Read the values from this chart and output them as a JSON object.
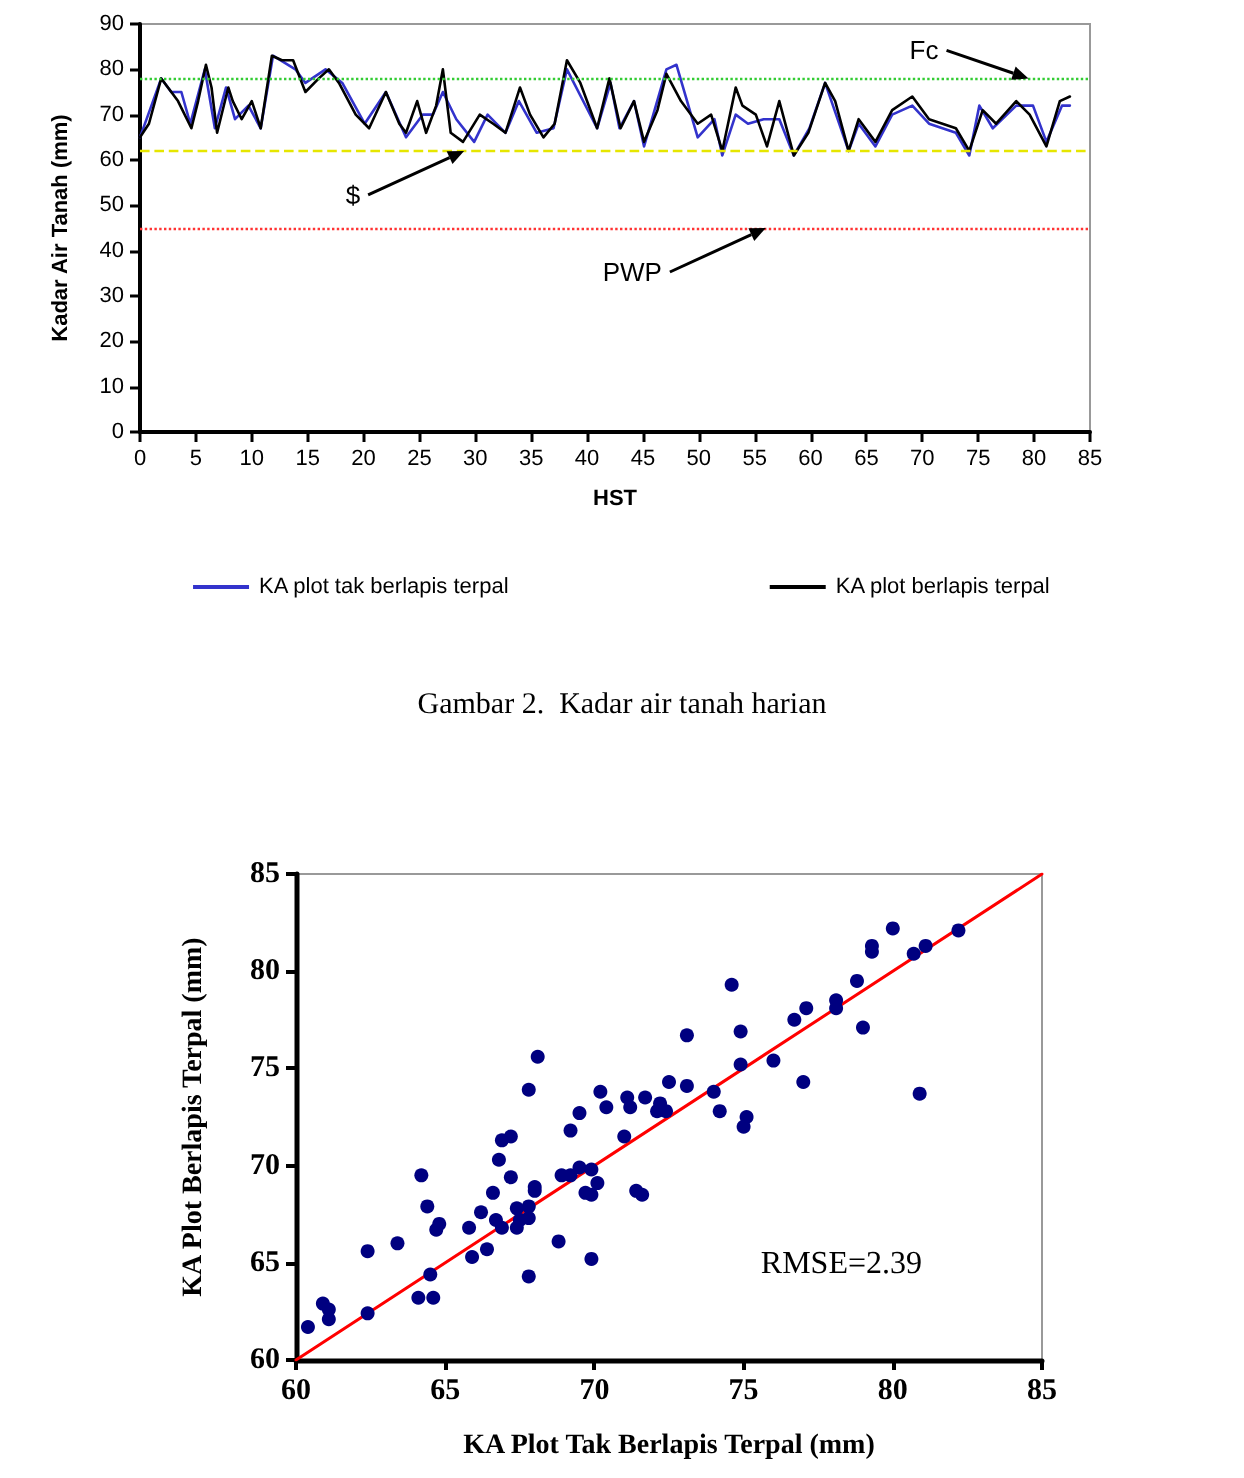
{
  "chart_data": [
    {
      "type": "line",
      "xlabel": "HST",
      "ylabel": "Kadar Air Tanah (mm)",
      "xlim": [
        0,
        85
      ],
      "xticks": [
        0,
        5,
        10,
        15,
        20,
        25,
        30,
        35,
        40,
        45,
        50,
        55,
        60,
        65,
        70,
        75,
        80,
        85
      ],
      "ylim": [
        0,
        90
      ],
      "yticks": [
        0,
        10,
        20,
        30,
        40,
        50,
        60,
        70,
        80,
        90
      ],
      "grid": false,
      "legend": "bottom",
      "marker": "none",
      "series": [
        {
          "name": "KA plot tak berlapis terpal",
          "color": "#3333cc",
          "x": [
            0,
            1.9,
            2.8,
            3.7,
            4.5,
            5.8,
            6.7,
            7.7,
            8.5,
            9.7,
            10.8,
            11.9,
            13.9,
            14.8,
            16.6,
            18.1,
            20.1,
            22,
            23.8,
            25.3,
            26.2,
            27.1,
            28.3,
            29.9,
            31.1,
            32.7,
            33.9,
            35.5,
            37,
            38.2,
            40.9,
            42.1,
            42.9,
            44.2,
            45.1,
            47.1,
            48,
            49.9,
            51.4,
            52.1,
            53.3,
            54.4,
            55.8,
            57.2,
            58.5,
            59.9,
            61.3,
            63.4,
            64.3,
            65.8,
            67.3,
            69.1,
            70.6,
            73,
            74.2,
            75.1,
            76.3,
            78.4,
            79.9,
            81.1,
            82.5,
            83.2
          ],
          "values": [
            65,
            78,
            75,
            75,
            68,
            80,
            67,
            76,
            69,
            72,
            67,
            83,
            80,
            77,
            80,
            77,
            68,
            75,
            65,
            70,
            70,
            75,
            69,
            64,
            70,
            66,
            73,
            66,
            67,
            80,
            67,
            77,
            67,
            73,
            63,
            80,
            81,
            65,
            69,
            61,
            70,
            68,
            69,
            69,
            61,
            67,
            77,
            62,
            68,
            63,
            70,
            72,
            68,
            66,
            61,
            72,
            67,
            72,
            72,
            64,
            72,
            72
          ]
        },
        {
          "name": "KA plot berlapis terpal",
          "color": "#000000",
          "x": [
            0,
            0.8,
            1.9,
            2.5,
            3.4,
            4.6,
            5.2,
            5.9,
            6.4,
            6.9,
            7.9,
            8.3,
            9.1,
            10,
            10.8,
            11.8,
            12.7,
            13.7,
            14.8,
            16,
            16.9,
            17.8,
            19.3,
            20.5,
            22,
            23.2,
            23.8,
            24.8,
            25.6,
            26.5,
            27.1,
            27.8,
            28.9,
            30.4,
            31.6,
            32.7,
            34,
            34.9,
            36.1,
            37.1,
            38.2,
            39.4,
            40.9,
            42,
            43,
            44.2,
            45.1,
            46.3,
            47.1,
            48.4,
            49.9,
            51.1,
            52.1,
            53.3,
            53.9,
            55.1,
            56.1,
            57.2,
            58.5,
            59.8,
            61.3,
            62.2,
            63.4,
            64.3,
            65.8,
            67.3,
            69.1,
            70.6,
            73,
            74.2,
            75.4,
            76.6,
            78.4,
            79.6,
            81.1,
            82.3,
            83.2
          ],
          "values": [
            65,
            68,
            78,
            76,
            73,
            67,
            73,
            81,
            76,
            66,
            76,
            73,
            69,
            73,
            67,
            83,
            82,
            82,
            75,
            78,
            80,
            77,
            70,
            67,
            75,
            68,
            66,
            73,
            66,
            72,
            80,
            66,
            64,
            70,
            68,
            66,
            76,
            70,
            65,
            68,
            82,
            77,
            67,
            78,
            67,
            73,
            64,
            71,
            79,
            73,
            68,
            70,
            62,
            76,
            72,
            70,
            63,
            73,
            61,
            66,
            77,
            73,
            62,
            69,
            64,
            71,
            74,
            69,
            67,
            62,
            71,
            68,
            73,
            70,
            63,
            73,
            74
          ]
        }
      ],
      "ref_lines": [
        {
          "axis": "y",
          "value": 78,
          "color": "#33cc33",
          "line_style": "dotted"
        },
        {
          "axis": "y",
          "value": 62,
          "color": "#e6e600",
          "line_style": "dashed"
        },
        {
          "axis": "y",
          "value": 45,
          "color": "#ff3333",
          "line_style": "dotted"
        }
      ],
      "annotations": [
        {
          "text": "Fc",
          "x": 79.5,
          "y": 78
        },
        {
          "text": "$",
          "x": 29,
          "y": 62
        },
        {
          "text": "PWP",
          "x": 56,
          "y": 45
        },
        "Gambar 2.  Kadar air tanah harian"
      ]
    },
    {
      "type": "scatter",
      "xlabel": "KA Plot Tak Berlapis Terpal (mm)",
      "ylabel": "KA Plot Berlapis Terpal (mm)",
      "xlim": [
        60,
        85
      ],
      "xticks": [
        60,
        65,
        70,
        75,
        80,
        85
      ],
      "ylim": [
        60,
        85
      ],
      "yticks": [
        60,
        65,
        70,
        75,
        80,
        85
      ],
      "grid": false,
      "legend": false,
      "series": [
        {
          "type": "scatter",
          "color": "#000080",
          "marker": "circle",
          "x": [
            60.4,
            60.9,
            61.1,
            61.1,
            62.4,
            62.4,
            63.4,
            64.1,
            64.6,
            64.5,
            64.2,
            64.4,
            64.7,
            64.8,
            65.8,
            65.9,
            66.2,
            66.4,
            66.6,
            66.7,
            66.9,
            66.8,
            66.9,
            67.2,
            67.2,
            67.4,
            67.4,
            67.5,
            67.8,
            67.8,
            68,
            68,
            67.8,
            67.8,
            68.1,
            68.8,
            68.9,
            69.2,
            69.5,
            69.9,
            69.7,
            69.9,
            69.9,
            70.1,
            69.2,
            69.5,
            70.2,
            70.4,
            71,
            71.1,
            71.2,
            71.7,
            71.4,
            71.6,
            72.1,
            72.2,
            72.4,
            72.5,
            73.1,
            73.1,
            74,
            74.2,
            74.6,
            74.9,
            74.9,
            75,
            75.1,
            76,
            76.7,
            77,
            77.1,
            78.1,
            78.1,
            78.8,
            79,
            79.3,
            79.3,
            80,
            80.7,
            80.9,
            81.1,
            82.2
          ],
          "values": [
            61.7,
            62.9,
            62.6,
            62.1,
            62.4,
            65.6,
            66,
            63.2,
            63.2,
            64.4,
            69.5,
            67.9,
            66.7,
            67,
            66.8,
            65.3,
            67.6,
            65.7,
            68.6,
            67.2,
            66.8,
            70.3,
            71.3,
            71.5,
            69.4,
            67.8,
            66.8,
            67.2,
            67.3,
            67.9,
            68.7,
            68.9,
            64.3,
            73.9,
            75.6,
            66.1,
            69.5,
            69.5,
            69.9,
            69.8,
            68.6,
            68.5,
            65.2,
            69.1,
            71.8,
            72.7,
            73.8,
            73,
            71.5,
            73.5,
            73,
            73.5,
            68.7,
            68.5,
            72.8,
            73.2,
            72.8,
            74.3,
            76.7,
            74.1,
            73.8,
            72.8,
            79.3,
            76.9,
            75.2,
            72,
            72.5,
            75.4,
            77.5,
            74.3,
            78.1,
            78.1,
            78.5,
            79.5,
            77.1,
            81.3,
            81,
            82.2,
            80.9,
            73.7,
            81.3,
            82.1
          ]
        },
        {
          "type": "line",
          "color": "#ff0000",
          "marker": "none",
          "x": [
            60,
            85
          ],
          "values": [
            60,
            85
          ]
        }
      ],
      "annotations": [
        "RMSE=2.39"
      ]
    }
  ]
}
